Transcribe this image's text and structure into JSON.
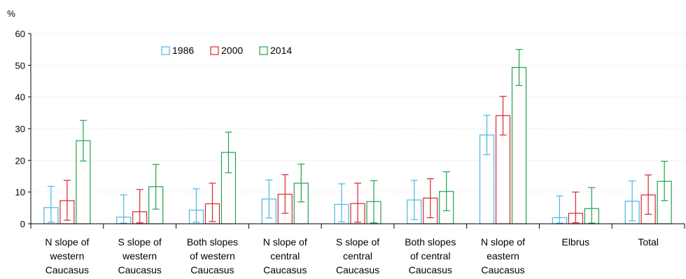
{
  "chart_data": {
    "type": "bar",
    "ylabel": "%",
    "ylim": [
      0,
      60
    ],
    "yticks": [
      0,
      10,
      20,
      30,
      40,
      50,
      60
    ],
    "grid": true,
    "legend_position": "top-left",
    "categories": [
      [
        "N slope of",
        "western",
        "Caucasus"
      ],
      [
        "S slope of",
        "western",
        "Caucasus"
      ],
      [
        "Both slopes",
        "of western",
        "Caucasus"
      ],
      [
        "N slope of",
        "central",
        "Caucasus"
      ],
      [
        "S slope of",
        "central",
        "Caucasus"
      ],
      [
        "Both slopes",
        "of central",
        "Caucasus"
      ],
      [
        "N slope of",
        "eastern",
        "Caucasus"
      ],
      [
        "Elbrus"
      ],
      [
        "Total"
      ]
    ],
    "series": [
      {
        "name": "1986",
        "color": "#4bb6e3",
        "values": [
          5.1,
          2.1,
          4.3,
          7.8,
          6.1,
          7.5,
          28.0,
          1.9,
          7.1
        ],
        "err_low": [
          0.5,
          0.2,
          0.5,
          1.8,
          0.6,
          1.3,
          21.8,
          0.2,
          0.9
        ],
        "err_high": [
          11.8,
          9.1,
          11.0,
          13.8,
          12.6,
          13.7,
          34.2,
          8.8,
          13.5
        ]
      },
      {
        "name": "2000",
        "color": "#d9262e",
        "values": [
          7.3,
          3.8,
          6.3,
          9.3,
          6.4,
          8.1,
          34.1,
          3.3,
          9.1
        ],
        "err_low": [
          1.1,
          0.3,
          0.7,
          3.3,
          0.5,
          1.9,
          28.0,
          0.3,
          3.0
        ],
        "err_high": [
          13.7,
          10.8,
          12.8,
          15.5,
          12.8,
          14.2,
          40.2,
          10.0,
          15.4
        ]
      },
      {
        "name": "2014",
        "color": "#20a24c",
        "values": [
          26.2,
          11.7,
          22.5,
          12.8,
          7.0,
          10.2,
          49.3,
          4.8,
          13.4
        ],
        "err_low": [
          19.8,
          4.6,
          16.1,
          6.9,
          0.3,
          4.1,
          43.6,
          0.2,
          7.3
        ],
        "err_high": [
          32.6,
          18.7,
          28.9,
          18.8,
          13.6,
          16.4,
          55.0,
          11.4,
          19.7
        ]
      }
    ]
  }
}
